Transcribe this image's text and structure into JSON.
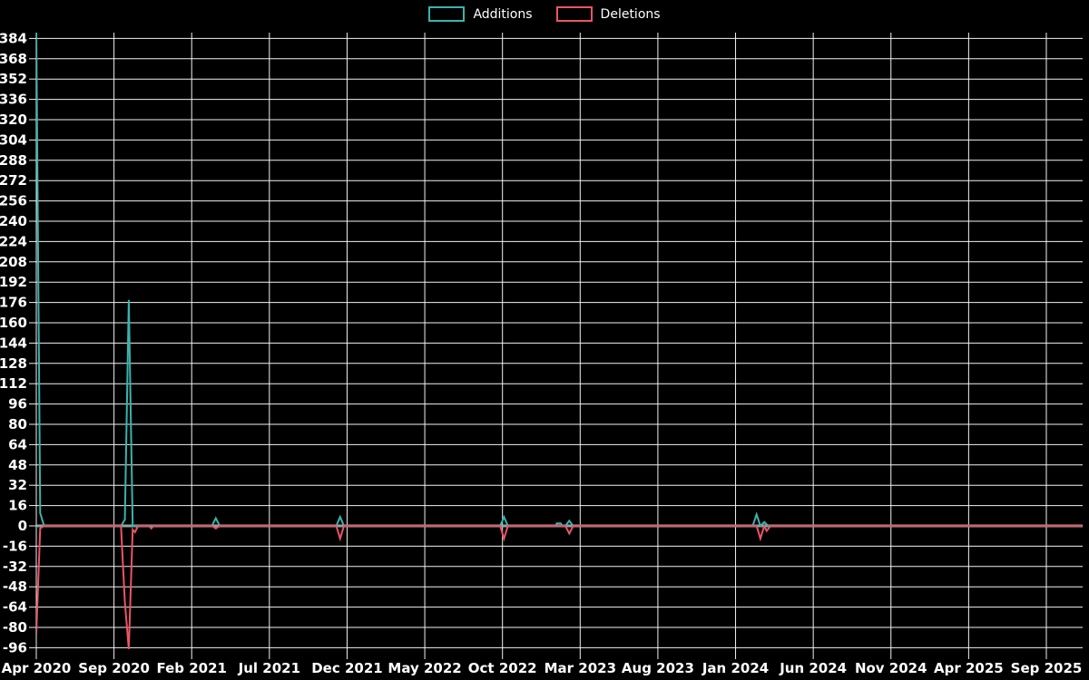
{
  "legend": {
    "items": [
      {
        "label": "Additions",
        "color": "#3AB3AB"
      },
      {
        "label": "Deletions",
        "color": "#EC5468"
      }
    ]
  },
  "colors": {
    "background": "#000000",
    "grid": "#F2F2F2",
    "text": "#FFFFFF",
    "additions": "#3AB3AB",
    "deletions": "#EC5468",
    "zero_line": "#8FA8A4"
  },
  "chart_data": {
    "type": "line",
    "title": "",
    "legend": [
      "Additions",
      "Deletions"
    ],
    "legend_position": "top-center",
    "grid": true,
    "x_axis": {
      "unit": "months since Apr 2020",
      "tick_interval_months": 5,
      "tick_labels": [
        "Apr 2020",
        "Sep 2020",
        "Feb 2021",
        "Jul 2021",
        "Dec 2021",
        "May 2022",
        "Oct 2022",
        "Mar 2023",
        "Aug 2023",
        "Jan 2024",
        "Jun 2024",
        "Nov 2024",
        "Apr 2025",
        "Sep 2025"
      ]
    },
    "y_axis": {
      "min": -96,
      "max": 384,
      "tick_step": 16,
      "ticks": [
        384,
        368,
        352,
        336,
        320,
        304,
        288,
        272,
        256,
        240,
        224,
        208,
        192,
        176,
        160,
        144,
        128,
        112,
        96,
        80,
        64,
        48,
        32,
        16,
        0,
        -16,
        -32,
        -48,
        -64,
        -80,
        -96
      ]
    },
    "zero_line_color": "#8FA8A4",
    "series": [
      {
        "name": "Additions",
        "color": "#3AB3AB",
        "points": [
          [
            0,
            390
          ],
          [
            0.25,
            10
          ],
          [
            0.5,
            0
          ],
          [
            5.45,
            0
          ],
          [
            5.7,
            5
          ],
          [
            5.95,
            178
          ],
          [
            6.2,
            0
          ],
          [
            11.3,
            0
          ],
          [
            11.55,
            6
          ],
          [
            11.8,
            0
          ],
          [
            19.3,
            0
          ],
          [
            19.55,
            7
          ],
          [
            19.8,
            0
          ],
          [
            29.85,
            0
          ],
          [
            30.1,
            7
          ],
          [
            30.35,
            0
          ],
          [
            33.4,
            0
          ],
          [
            33.5,
            2
          ],
          [
            33.75,
            2
          ],
          [
            33.85,
            0
          ],
          [
            34.05,
            0
          ],
          [
            34.3,
            4
          ],
          [
            34.55,
            0
          ],
          [
            46.1,
            0
          ],
          [
            46.35,
            9
          ],
          [
            46.6,
            0
          ],
          [
            46.85,
            3
          ],
          [
            47.1,
            0
          ],
          [
            67.3,
            0
          ]
        ]
      },
      {
        "name": "Deletions",
        "color": "#EC5468",
        "points": [
          [
            0,
            -85
          ],
          [
            0.25,
            -2
          ],
          [
            0.5,
            0
          ],
          [
            5.45,
            0
          ],
          [
            5.7,
            -60
          ],
          [
            5.95,
            -97
          ],
          [
            6.2,
            -3
          ],
          [
            6.35,
            -5
          ],
          [
            6.55,
            0
          ],
          [
            7.25,
            0
          ],
          [
            7.4,
            -2
          ],
          [
            7.55,
            0
          ],
          [
            11.3,
            0
          ],
          [
            11.55,
            -2
          ],
          [
            11.8,
            0
          ],
          [
            19.3,
            0
          ],
          [
            19.55,
            -10
          ],
          [
            19.8,
            0
          ],
          [
            29.85,
            0
          ],
          [
            30.1,
            -10
          ],
          [
            30.35,
            0
          ],
          [
            34.05,
            0
          ],
          [
            34.3,
            -6
          ],
          [
            34.55,
            0
          ],
          [
            46.35,
            0
          ],
          [
            46.6,
            -10
          ],
          [
            46.85,
            0
          ],
          [
            47.0,
            -4
          ],
          [
            47.25,
            0
          ],
          [
            67.3,
            0
          ]
        ]
      }
    ],
    "notes": "Weekly additions/deletions; Apr 2020 additions spike clipped at chart top (~+390); Sep-Oct 2020 deletions spike clipped near chart bottom (~-97)."
  }
}
